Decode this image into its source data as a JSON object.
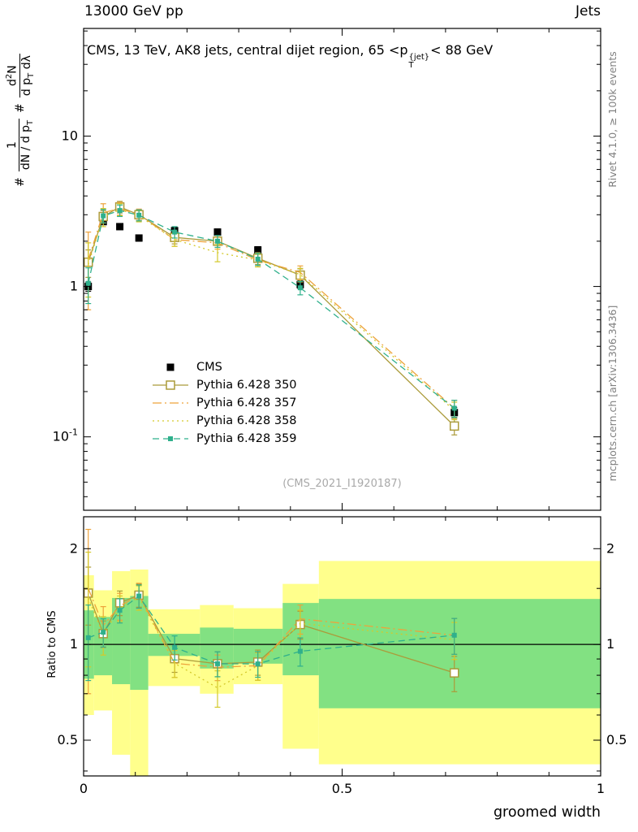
{
  "header": {
    "left": "13000 GeV pp",
    "right": "Jets"
  },
  "panel_title": {
    "pre": "CMS, 13 TeV, AK8 jets, central dijet region, 65 <p",
    "sup": "{jet}",
    "sub": "T",
    "post": "< 88 GeV"
  },
  "ylabel": {
    "hash1": "#",
    "num1": "1",
    "den1_pre": "dN / d p",
    "den1_sub": "T",
    "hash2": "#",
    "num2_pre": "d",
    "num2_sup": "2",
    "num2_post": "N",
    "den2_pre": "d p",
    "den2_sub": "T",
    "den2_post": " dλ"
  },
  "ratio_ylabel": "Ratio to CMS",
  "xlabel": "groomed width",
  "watermark": "(CMS_2021_I1920187)",
  "side_notes": {
    "top_right": "Rivet 4.1.0, ≥ 100k events",
    "bottom_right": "mcplots.cern.ch [arXiv:1306.3436]"
  },
  "colors": {
    "cms": "#000000",
    "p350": "#ab9b3a",
    "p357": "#eda33b",
    "p358": "#d4c92a",
    "p359": "#2fb08c",
    "band_yellow": "#ffff8c",
    "band_green": "#82e182"
  },
  "legend": {
    "items": [
      "cms",
      "p350",
      "p357",
      "p358",
      "p359"
    ]
  },
  "chart_data": {
    "type": "line",
    "title": "CMS, 13 TeV, AK8 jets, central dijet region, 65 < pT^jet < 88 GeV",
    "xlabel": "groomed width",
    "ylabel": "1/(dN/dpT) d2N/(dpT dlambda)",
    "x": [
      0.009,
      0.038,
      0.07,
      0.107,
      0.176,
      0.259,
      0.337,
      0.419,
      0.717
    ],
    "bin_edges": [
      0,
      0.02,
      0.055,
      0.09,
      0.125,
      0.225,
      0.29,
      0.385,
      0.455,
      1.0
    ],
    "series": [
      {
        "id": "cms",
        "name": "CMS",
        "color_key": "cms",
        "marker": "square",
        "line": "none",
        "values": [
          1.0,
          2.7,
          2.5,
          2.1,
          2.35,
          2.3,
          1.75,
          1.03,
          0.145
        ],
        "errors": [
          0.07,
          0.12,
          0.11,
          0.1,
          0.11,
          0.11,
          0.09,
          0.06,
          0.012
        ]
      },
      {
        "id": "p350",
        "name": "Pythia 6.428 350",
        "color_key": "p350",
        "marker": "square-open",
        "line": "solid",
        "values": [
          1.45,
          2.92,
          3.38,
          3.0,
          2.12,
          2.0,
          1.54,
          1.19,
          0.118
        ],
        "errors": [
          0.3,
          0.28,
          0.3,
          0.25,
          0.2,
          0.18,
          0.14,
          0.12,
          0.015
        ]
      },
      {
        "id": "p357",
        "name": "Pythia 6.428 357",
        "color_key": "p357",
        "marker": "none",
        "line": "dashdot",
        "values": [
          1.5,
          3.1,
          3.3,
          3.0,
          2.05,
          1.95,
          1.5,
          1.24,
          0.155
        ],
        "errors": [
          0.8,
          0.45,
          0.32,
          0.27,
          0.2,
          0.18,
          0.15,
          0.13,
          0.02
        ]
      },
      {
        "id": "p358",
        "name": "Pythia 6.428 358",
        "color_key": "p358",
        "marker": "none",
        "line": "dot",
        "values": [
          1.4,
          2.9,
          3.25,
          2.95,
          2.05,
          1.68,
          1.5,
          1.2,
          0.15
        ],
        "errors": [
          0.55,
          0.4,
          0.3,
          0.26,
          0.2,
          0.22,
          0.15,
          0.12,
          0.02
        ]
      },
      {
        "id": "p359",
        "name": "Pythia 6.428 359",
        "color_key": "p359",
        "marker": "square-small",
        "line": "dash",
        "values": [
          1.05,
          2.95,
          3.2,
          2.98,
          2.3,
          2.0,
          1.52,
          0.98,
          0.155
        ],
        "errors": [
          0.28,
          0.3,
          0.28,
          0.25,
          0.2,
          0.18,
          0.14,
          0.1,
          0.02
        ]
      }
    ],
    "ratio": {
      "baseline": 1,
      "bands": {
        "edges": [
          0,
          0.02,
          0.055,
          0.09,
          0.125,
          0.225,
          0.29,
          0.385,
          0.455,
          1.0
        ],
        "yellow": [
          [
            0.6,
            1.65
          ],
          [
            0.62,
            1.48
          ],
          [
            0.45,
            1.7
          ],
          [
            0.38,
            1.72
          ],
          [
            0.74,
            1.29
          ],
          [
            0.7,
            1.33
          ],
          [
            0.75,
            1.3
          ],
          [
            0.47,
            1.55
          ],
          [
            0.42,
            1.83
          ]
        ],
        "green": [
          [
            0.78,
            1.28
          ],
          [
            0.8,
            1.22
          ],
          [
            0.75,
            1.4
          ],
          [
            0.72,
            1.42
          ],
          [
            0.92,
            1.08
          ],
          [
            0.84,
            1.13
          ],
          [
            0.87,
            1.12
          ],
          [
            0.8,
            1.35
          ],
          [
            0.63,
            1.39
          ]
        ]
      }
    },
    "axes": {
      "x": {
        "scale": "linear",
        "min": 0,
        "max": 1,
        "minor_step": 0.1,
        "ticks": [
          {
            "v": 0,
            "t": "0"
          },
          {
            "v": 0.5,
            "t": "0.5"
          },
          {
            "v": 1,
            "t": "1"
          }
        ]
      },
      "main_y": {
        "scale": "log",
        "min": 0.0325,
        "max": 52,
        "ticks": [
          {
            "v": 10,
            "t": "10"
          },
          {
            "v": 1,
            "t": "1"
          },
          {
            "v": 0.1,
            "t": "10",
            "exp": "-1"
          }
        ]
      },
      "ratio_y": {
        "scale": "log",
        "min": 0.386,
        "max": 2.52,
        "ticks": [
          {
            "v": 2,
            "t": "2"
          },
          {
            "v": 1,
            "t": "1"
          },
          {
            "v": 0.5,
            "t": "0.5"
          }
        ],
        "minor": [
          0.4,
          0.6,
          0.7,
          0.8,
          0.9,
          1.5
        ]
      }
    },
    "legend_position": "middle-left",
    "grid": false
  }
}
